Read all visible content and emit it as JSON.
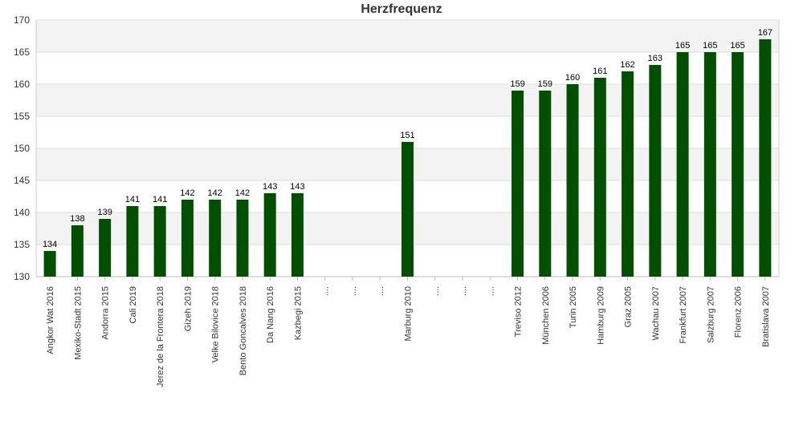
{
  "chart_data": {
    "type": "bar",
    "title": "Herzfrequenz",
    "xlabel": "",
    "ylabel": "",
    "ylim": [
      130,
      170
    ],
    "yticks": [
      130,
      135,
      140,
      145,
      150,
      155,
      160,
      165,
      170
    ],
    "grid": true,
    "bar_color": "#005000",
    "band_color": "#f3f3f3",
    "categories": [
      "Angkor Wat 2016",
      "Mexiko-Stadt 2015",
      "Andorra 2015",
      "Cali 2019",
      "Jerez de la Frontera 2018",
      "Gizeh 2019",
      "Velke Bilovice 2018",
      "Bento Goncalves 2018",
      "Da Nang 2016",
      "Kazbegi 2015",
      "....",
      "....",
      "....",
      "Marburg 2010",
      "....",
      "....",
      "....",
      "Treviso 2012",
      "München 2006",
      "Turin 2005",
      "Hamburg 2009",
      "Graz 2005",
      "Wachau 2007",
      "Frankfurt 2007",
      "Salzburg 2007",
      "Florenz 2006",
      "Bratislava 2007"
    ],
    "values": [
      134,
      138,
      139,
      141,
      141,
      142,
      142,
      142,
      143,
      143,
      null,
      null,
      null,
      151,
      null,
      null,
      null,
      159,
      159,
      160,
      161,
      162,
      163,
      165,
      165,
      165,
      167
    ]
  }
}
